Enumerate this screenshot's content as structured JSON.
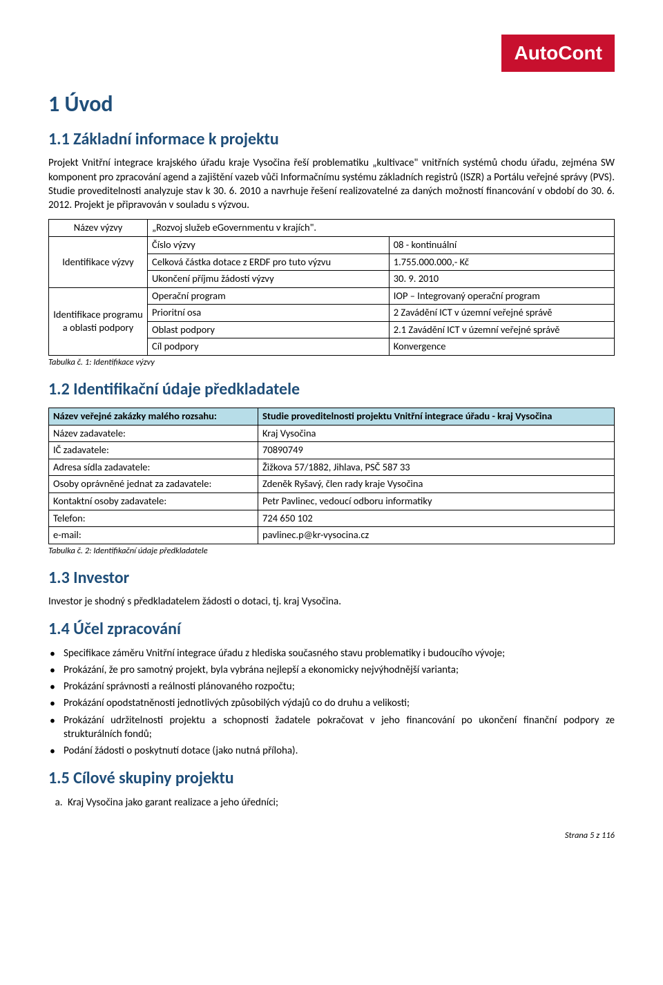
{
  "logo": "AutoCont",
  "h1": "1   Úvod",
  "s11": {
    "title": "1.1  Základní informace k projektu",
    "paragraph": "Projekt Vnitřní integrace krajského úřadu kraje Vysočina řeší problematiku „kultivace\" vnitřních systémů chodu úřadu, zejména SW komponent pro zpracování agend a zajištění vazeb vůči Informačnímu systému základních registrů (ISZR) a Portálu veřejné správy (PVS). Studie proveditelnosti analyzuje stav k 30. 6. 2010 a navrhuje řešení realizovatelné za daných možností financování v období do 30. 6. 2012. Projekt je připravován v souladu s výzvou."
  },
  "table1": {
    "row_nazev_label": "Název výzvy",
    "row_nazev_value": "„Rozvoj služeb eGovernmentu v krajích\".",
    "ident_vyzvy_label": "Identifikace výzvy",
    "r1c1": "Číslo výzvy",
    "r1c2": "08 - kontinuální",
    "r2c1": "Celková částka dotace z ERDF pro tuto výzvu",
    "r2c2": "1.755.000.000,- Kč",
    "r3c1": "Ukončení příjmu žádostí výzvy",
    "r3c2": "30. 9. 2010",
    "ident_prog_label": "Identifikace programu a oblasti podpory",
    "r4c1": "Operační program",
    "r4c2": "IOP – Integrovaný operační program",
    "r5c1": "Prioritní osa",
    "r5c2": "2 Zavádění ICT v územní veřejné správě",
    "r6c1": "Oblast podpory",
    "r6c2": "2.1 Zavádění ICT v územní veřejné správě",
    "r7c1": "Cíl podpory",
    "r7c2": "Konvergence",
    "caption": "Tabulka č. 1:    Identifikace výzvy"
  },
  "s12": {
    "title": "1.2  Identifikační údaje předkladatele",
    "header_c1": "Název veřejné zakázky malého rozsahu:",
    "header_c2": "Studie proveditelnosti projektu Vnitřní integrace  úřadu - kraj Vysočina",
    "rows": [
      [
        "Název zadavatele:",
        "Kraj Vysočina"
      ],
      [
        "IČ zadavatele:",
        "70890749"
      ],
      [
        "Adresa sídla zadavatele:",
        "Žižkova 57/1882, Jihlava, PSČ 587 33"
      ],
      [
        "Osoby oprávněné jednat za zadavatele:",
        "Zdeněk Ryšavý, člen rady kraje Vysočina"
      ],
      [
        "Kontaktní osoby zadavatele:",
        "Petr Pavlinec, vedoucí odboru informatiky"
      ],
      [
        "Telefon:",
        "724 650 102"
      ],
      [
        "e-mail:",
        "pavlinec.p@kr-vysocina.cz"
      ]
    ],
    "caption": "Tabulka č. 2:    Identifikační údaje předkladatele"
  },
  "s13": {
    "title": "1.3   Investor",
    "paragraph": "Investor je shodný s předkladatelem žádosti o dotaci, tj. kraj Vysočina."
  },
  "s14": {
    "title": "1.4   Účel zpracování",
    "items": [
      "Specifikace záměru Vnitřní integrace úřadu z hlediska současného stavu problematiky i budoucího vývoje;",
      "Prokázání, že pro samotný projekt, byla vybrána nejlepší a ekonomicky nejvýhodnější varianta;",
      "Prokázání správnosti a reálnosti plánovaného rozpočtu;",
      "Prokázání opodstatněnosti jednotlivých způsobilých výdajů co do druhu a velikosti;",
      "Prokázání udržitelnosti projektu a schopnosti žadatele pokračovat v jeho financování po ukončení finanční podpory ze strukturálních fondů;",
      "Podání žádosti o poskytnutí dotace (jako nutná příloha)."
    ]
  },
  "s15": {
    "title": "1.5  Cílové skupiny projektu",
    "item_a": "Kraj Vysočina jako garant realizace a jeho úředníci;"
  },
  "footer": "Strana 5 z 116"
}
